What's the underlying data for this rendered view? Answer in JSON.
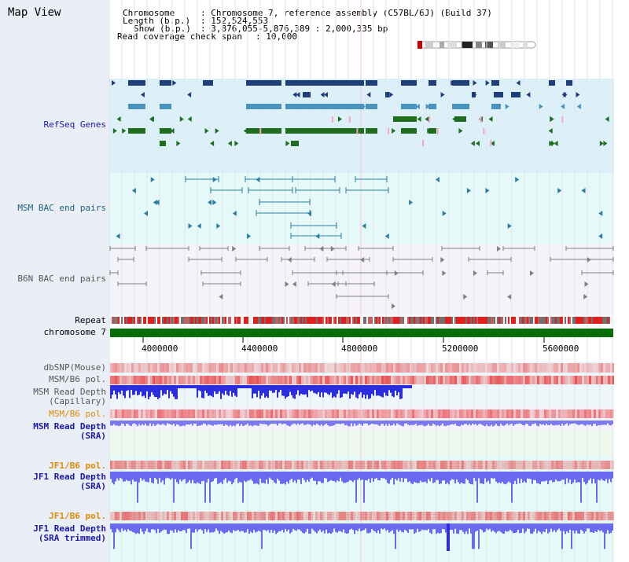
{
  "title": "Map View",
  "info": {
    "chromosome_key": "Chromosome",
    "chromosome_val": ": Chromosome 7, reference assembly (C57BL/6J) (Build 37)",
    "length_key": "Length (b.p.)",
    "length_val": ": 152,524,553",
    "show_key": "Show (b.p.)",
    "show_val": ": 3,876,055-5,876,389 : 2,000,335 bp",
    "coverage_key": "Read coverage check span",
    "coverage_val": ": 10,000"
  },
  "tracks": {
    "refseq": "RefSeq Genes",
    "msm_bac": "MSM BAC end pairs",
    "b6n_bac": "B6N BAC end pairs",
    "repeat": "Repeat",
    "chromosome": "chromosome 7",
    "dbsnp": "dbSNP(Mouse)",
    "msm_pol1": "MSM/B6 pol.",
    "msm_depth_cap_1": "MSM Read Depth",
    "msm_depth_cap_2": "(Capillary)",
    "msm_pol2": "MSM/B6 pol.",
    "msm_depth_sra_1": "MSM Read Depth",
    "msm_depth_sra_2": "(SRA)",
    "jf1_pol1": "JF1/B6 pol.",
    "jf1_depth_sra_1": "JF1 Read Depth",
    "jf1_depth_sra_2": "(SRA)",
    "jf1_pol2": "JF1/B6 pol.",
    "jf1_depth_trim_1": "JF1 Read Depth",
    "jf1_depth_trim_2": "(SRA trimmed)"
  },
  "genome_axis": [
    "4000000",
    "4400000",
    "4800000",
    "5200000",
    "5600000"
  ],
  "colors": {
    "refseq_bg": "#dff1fb",
    "msm_bac_bg": "#e6f9f9",
    "gene_dark": "#1f3f7a",
    "gene_mid": "#4a93bd",
    "gene_green": "#1f6e1f",
    "gene_pink": "#f6a6c4",
    "bac_teal": "#2a7fa0",
    "bac_gray": "#808080",
    "chrom_green": "#0a6d0a",
    "depth_blue": "#3a3aff",
    "msm_label": "#1f6080",
    "msm_pol2_label": "#e08a00",
    "blue_label": "#1a1aa6",
    "jf_pol_label": "#e08a00"
  }
}
